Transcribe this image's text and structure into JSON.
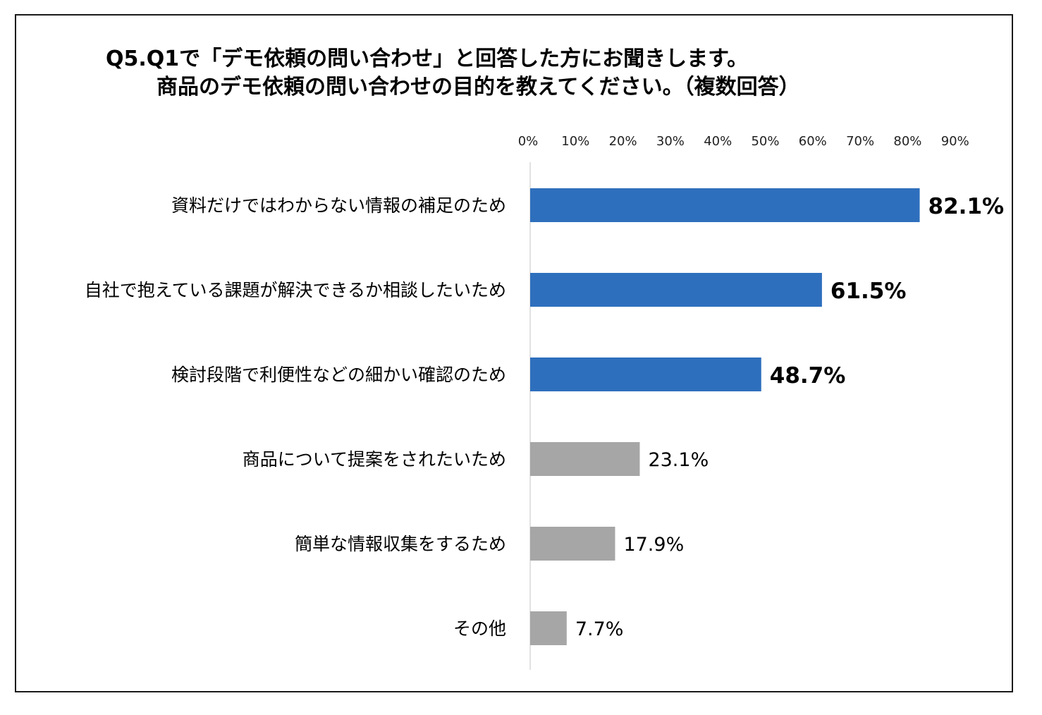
{
  "title": {
    "line1": "Q5.Q1で「デモ依頼の問い合わせ」と回答した方にお聞きします。",
    "line2": "商品のデモ依頼の問い合わせの目的を教えてください。（複数回答）"
  },
  "colors": {
    "highlight": "#2e6fbd",
    "other": "#a6a6a6",
    "axis_line": "#d9d9d9",
    "frame": "#1a1a1a"
  },
  "chart_data": {
    "type": "bar",
    "orientation": "horizontal",
    "title": "Q5.Q1で「デモ依頼の問い合わせ」と回答した方にお聞きします。 商品のデモ依頼の問い合わせの目的を教えてください。（複数回答）",
    "xlabel": "",
    "ylabel": "",
    "x_ticks": [
      "0%",
      "10%",
      "20%",
      "30%",
      "40%",
      "50%",
      "60%",
      "70%",
      "80%",
      "90%"
    ],
    "xlim": [
      0,
      90
    ],
    "x_axis_position": "top",
    "grid": false,
    "legend": "none",
    "categories": [
      "資料だけではわからない情報の補足のため",
      "自社で抱えている課題が解決できるか相談したいため",
      "検討段階で利便性などの細かい確認のため",
      "商品について提案をされたいため",
      "簡単な情報収集をするため",
      "その他"
    ],
    "values": [
      82.1,
      61.5,
      48.7,
      23.1,
      17.9,
      7.7
    ],
    "value_labels": [
      "82.1%",
      "61.5%",
      "48.7%",
      "23.1%",
      "17.9%",
      "7.7%"
    ],
    "highlighted": [
      true,
      true,
      true,
      false,
      false,
      false
    ]
  }
}
